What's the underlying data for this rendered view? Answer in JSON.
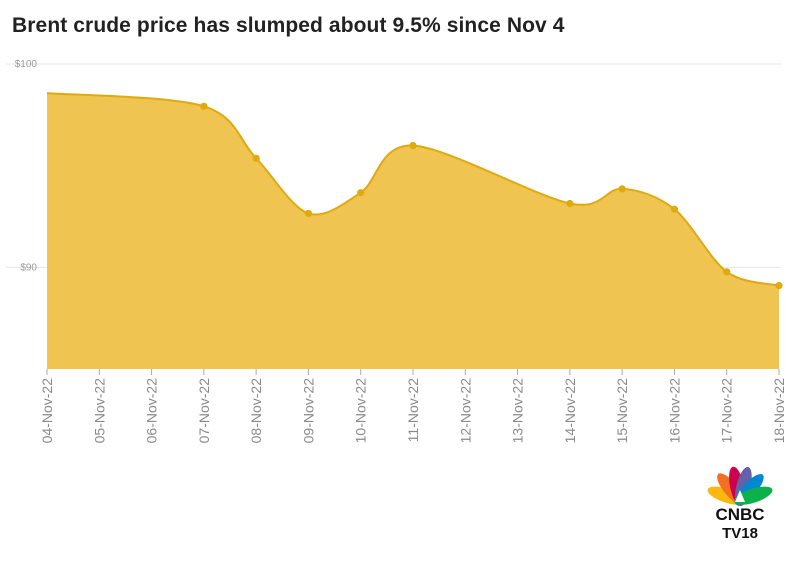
{
  "chart_data": {
    "type": "area",
    "title": "Brent crude price has slumped about 9.5% since Nov 4",
    "xlabel": "",
    "ylabel": "",
    "categories": [
      "04-Nov-22",
      "05-Nov-22",
      "06-Nov-22",
      "07-Nov-22",
      "08-Nov-22",
      "09-Nov-22",
      "10-Nov-22",
      "11-Nov-22",
      "12-Nov-22",
      "13-Nov-22",
      "14-Nov-22",
      "15-Nov-22",
      "16-Nov-22",
      "17-Nov-22",
      "18-Nov-22"
    ],
    "values": [
      98.57,
      null,
      null,
      97.92,
      95.36,
      92.65,
      93.67,
      95.99,
      null,
      null,
      93.14,
      93.86,
      92.86,
      89.78,
      89.1
    ],
    "ylim": [
      85,
      100
    ],
    "y_ticks": [
      90,
      100
    ],
    "y_tick_labels": [
      "$90",
      "$100"
    ],
    "grid": true,
    "fill_color": "#f0c451",
    "line_color": "#e0a90e",
    "marker_color": "#e0a90e"
  },
  "logo": {
    "text_top": "CNBC",
    "text_bottom": "TV18"
  }
}
